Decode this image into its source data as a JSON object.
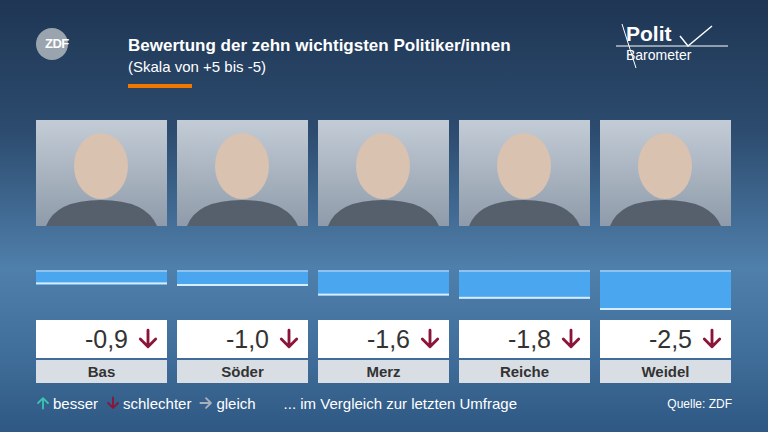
{
  "chart_data": {
    "type": "bar",
    "title": "Bewertung der zehn wichtigsten Politiker/innen",
    "subtitle": "(Skala von +5 bis -5)",
    "logo": "ZDF",
    "brand": [
      "Polit",
      "Barometer"
    ],
    "categories": [
      "Bas",
      "Söder",
      "Merz",
      "Reiche",
      "Weidel"
    ],
    "values": [
      -0.9,
      -1.0,
      -1.6,
      -1.8,
      -2.5
    ],
    "value_labels": [
      "-0,9",
      "-1,0",
      "-1,6",
      "-1,8",
      "-2,5"
    ],
    "trend": [
      "schlechter",
      "schlechter",
      "schlechter",
      "schlechter",
      "schlechter"
    ],
    "color": "#4aa6ee",
    "ylim": [
      -3,
      0
    ],
    "grid": false,
    "tick_labels": false,
    "data_labels": true,
    "legend": "lower left",
    "legend_items": [
      "besser",
      "schlechter",
      "gleich"
    ],
    "note": "... im Vergleich zur letzten Umfrage",
    "source": "Quelle: ZDF"
  }
}
